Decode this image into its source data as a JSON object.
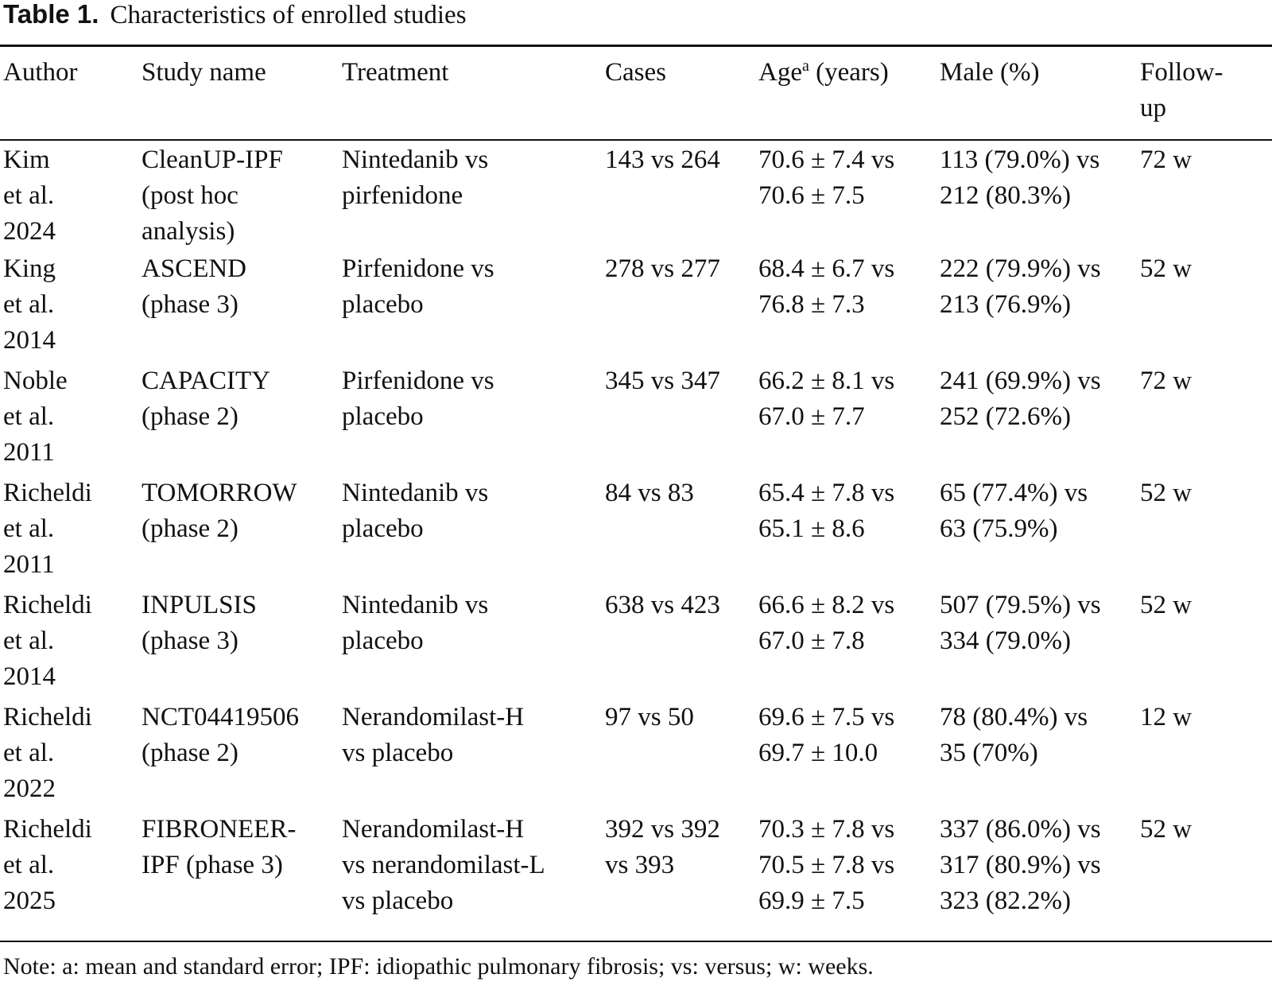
{
  "caption": {
    "label": "Table 1.",
    "text": "Characteristics of enrolled studies"
  },
  "columns": {
    "author": "Author",
    "study": "Study name",
    "treatment": "Treatment",
    "cases": "Cases",
    "age_prefix": "Age",
    "age_sup": "a",
    "age_suffix": " (years)",
    "male": "Male (%)",
    "followup_line1": "Follow-",
    "followup_line2": "up"
  },
  "rows": [
    {
      "author": [
        "Kim",
        "et al.",
        "2024"
      ],
      "study": [
        "CleanUP-IPF",
        "(post hoc",
        "analysis)"
      ],
      "treatment": [
        "Nintedanib vs",
        "pirfenidone"
      ],
      "cases": [
        "143 vs 264"
      ],
      "age": [
        "70.6 ± 7.4 vs",
        "70.6 ± 7.5"
      ],
      "male": [
        "113 (79.0%) vs",
        "212 (80.3%)"
      ],
      "followup": [
        "72 w"
      ]
    },
    {
      "author": [
        "King",
        "et al.",
        "2014"
      ],
      "study": [
        "ASCEND",
        "(phase 3)"
      ],
      "treatment": [
        "Pirfenidone vs",
        "placebo"
      ],
      "cases": [
        "278 vs 277"
      ],
      "age": [
        "68.4 ± 6.7 vs",
        "76.8 ± 7.3"
      ],
      "male": [
        "222 (79.9%) vs",
        "213 (76.9%)"
      ],
      "followup": [
        "52 w"
      ]
    },
    {
      "author": [
        "Noble",
        "et al.",
        "2011"
      ],
      "study": [
        "CAPACITY",
        "(phase 2)"
      ],
      "treatment": [
        "Pirfenidone vs",
        "placebo"
      ],
      "cases": [
        "345 vs 347"
      ],
      "age": [
        "66.2 ± 8.1 vs",
        "67.0 ± 7.7"
      ],
      "male": [
        "241 (69.9%) vs",
        "252 (72.6%)"
      ],
      "followup": [
        "72 w"
      ]
    },
    {
      "author": [
        "Richeldi",
        "et al.",
        "2011"
      ],
      "study": [
        "TOMORROW",
        "(phase 2)"
      ],
      "treatment": [
        "Nintedanib vs",
        "placebo"
      ],
      "cases": [
        "84 vs 83"
      ],
      "age": [
        "65.4 ± 7.8 vs",
        "65.1 ± 8.6"
      ],
      "male": [
        "65 (77.4%) vs",
        "63 (75.9%)"
      ],
      "followup": [
        "52 w"
      ]
    },
    {
      "author": [
        "Richeldi",
        "et al.",
        "2014"
      ],
      "study": [
        "INPULSIS",
        "(phase 3)"
      ],
      "treatment": [
        "Nintedanib vs",
        "placebo"
      ],
      "cases": [
        "638 vs 423"
      ],
      "age": [
        "66.6 ± 8.2 vs",
        "67.0 ± 7.8"
      ],
      "male": [
        "507 (79.5%) vs",
        "334 (79.0%)"
      ],
      "followup": [
        "52 w"
      ]
    },
    {
      "author": [
        "Richeldi",
        "et al.",
        "2022"
      ],
      "study": [
        "NCT04419506",
        "(phase 2)"
      ],
      "treatment": [
        "Nerandomilast-H",
        "vs placebo"
      ],
      "cases": [
        "97 vs 50"
      ],
      "age": [
        "69.6 ± 7.5 vs",
        "69.7 ± 10.0"
      ],
      "male": [
        "78 (80.4%) vs",
        "35 (70%)"
      ],
      "followup": [
        "12 w"
      ]
    },
    {
      "author": [
        "Richeldi",
        "et al.",
        "2025"
      ],
      "study": [
        "FIBRONEER-",
        "IPF (phase 3)"
      ],
      "treatment": [
        "Nerandomilast-H",
        "vs nerandomilast-L",
        "vs placebo"
      ],
      "cases": [
        "392 vs 392",
        "vs 393"
      ],
      "age": [
        "70.3 ± 7.8 vs",
        "70.5 ± 7.8 vs",
        "69.9 ± 7.5"
      ],
      "male": [
        "337 (86.0%) vs",
        "317 (80.9%) vs",
        "323 (82.2%)"
      ],
      "followup": [
        "52 w"
      ]
    }
  ],
  "note": "Note: a: mean and standard error; IPF: idiopathic pulmonary fibrosis; vs: versus; w: weeks."
}
